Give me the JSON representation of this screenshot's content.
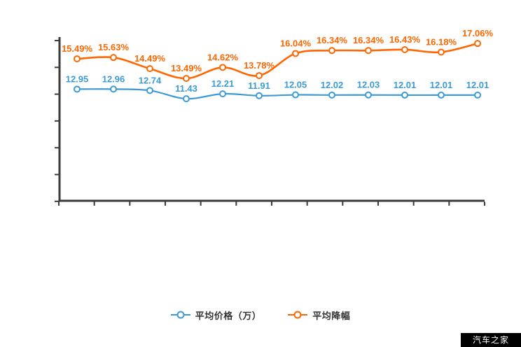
{
  "chart_data": {
    "type": "line",
    "title": "",
    "xlabel": "",
    "ylabel": "",
    "x_tick_labels_visible": false,
    "y_tick_labels_visible": false,
    "grid": false,
    "smooth": true,
    "point_count": 12,
    "legend_position": "bottom",
    "legend": [
      "平均价格（万）",
      "平均降幅"
    ],
    "series": [
      {
        "name": "平均价格（万）",
        "color": "#3C9BD6",
        "unit": "万",
        "label_suffix": "",
        "values": [
          12.95,
          12.96,
          12.74,
          11.43,
          12.21,
          11.91,
          12.05,
          12.02,
          12.03,
          12.01,
          12.01,
          12.01
        ],
        "labels": [
          "12.95",
          "12.96",
          "12.74",
          "11.43",
          "12.21",
          "11.91",
          "12.05",
          "12.02",
          "12.03",
          "12.01",
          "12.01",
          "12.01"
        ]
      },
      {
        "name": "平均降幅",
        "color": "#FF6600",
        "unit": "%",
        "label_suffix": "%",
        "values": [
          15.49,
          15.63,
          14.49,
          13.49,
          14.62,
          13.78,
          16.04,
          16.34,
          16.34,
          16.43,
          16.18,
          17.06
        ],
        "labels": [
          "15.49%",
          "15.63%",
          "14.49%",
          "13.49%",
          "14.62%",
          "13.78%",
          "16.04%",
          "16.34%",
          "16.34%",
          "16.43%",
          "16.18%",
          "17.06%"
        ]
      }
    ]
  },
  "colors": {
    "axis": "#3B3B3B",
    "blue": "#3C9BD6",
    "orange": "#FF6600",
    "legend_text": "#333333",
    "watermark_bg": "#000000",
    "watermark_text": "#FFFFFF"
  },
  "watermark": {
    "text": "汽车之家"
  }
}
